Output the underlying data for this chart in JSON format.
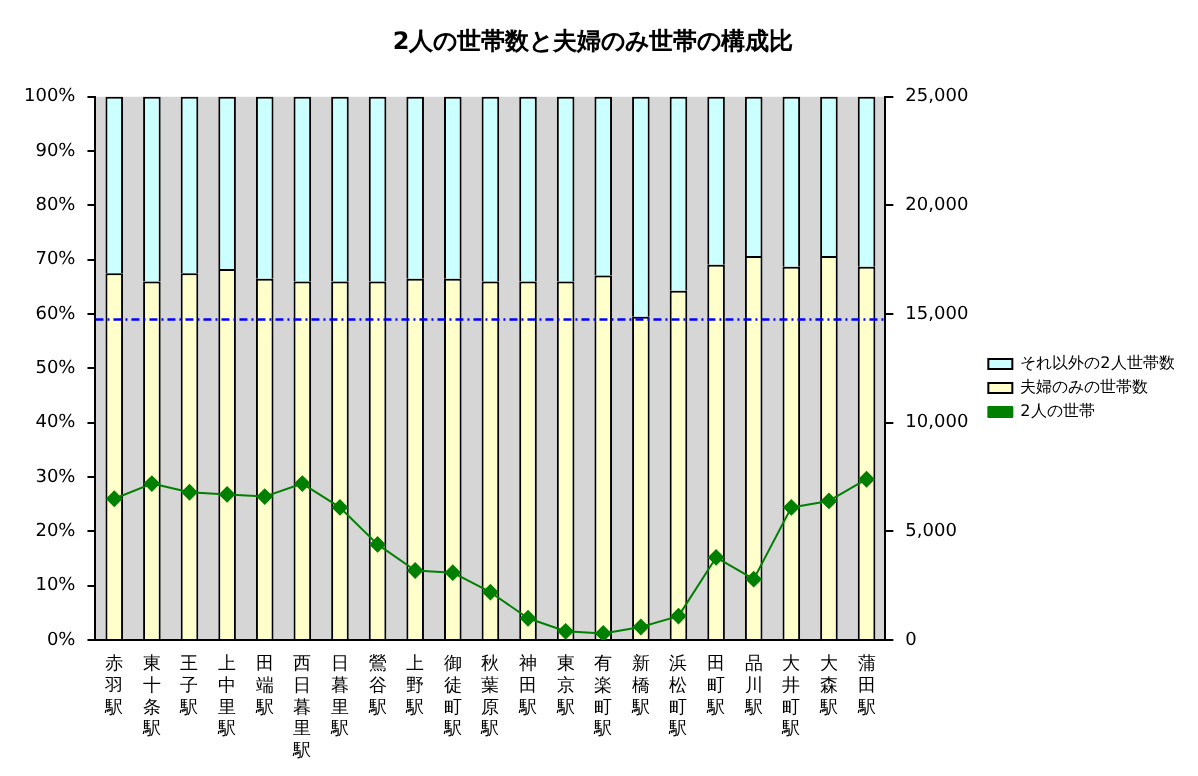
{
  "chart_data": {
    "type": "bar",
    "title": "2人の世帯数と夫婦のみ世帯の構成比",
    "stacked": true,
    "categories": [
      "赤羽駅",
      "東十条駅",
      "王子駅",
      "上中里駅",
      "田端駅",
      "西日暮里駅",
      "日暮里駅",
      "鶯谷駅",
      "上野駅",
      "御徒町駅",
      "秋葉原駅",
      "神田駅",
      "東京駅",
      "有楽町駅",
      "新橋駅",
      "浜松町駅",
      "田町駅",
      "品川駅",
      "大井町駅",
      "大森駅",
      "蒲田駅"
    ],
    "series": [
      {
        "name": "夫婦のみの世帯数",
        "color": "#ffffcc",
        "values": [
          67.5,
          66,
          67.5,
          68.3,
          66.5,
          66,
          66,
          66,
          66.5,
          66.5,
          66,
          66,
          66,
          67.1,
          59.5,
          64.3,
          69.1,
          70.7,
          68.7,
          70.7,
          68.7
        ]
      },
      {
        "name": "それ以外の2人世帯数",
        "color": "#ccffff",
        "values": [
          32.5,
          34,
          32.5,
          31.7,
          33.5,
          34,
          34,
          34,
          33.5,
          33.5,
          34,
          34,
          34,
          32.9,
          40.5,
          35.7,
          30.9,
          29.3,
          31.3,
          29.3,
          31.3
        ]
      },
      {
        "name": "2人の世帯",
        "type": "line",
        "axis": "y2",
        "color": "#008000",
        "marker": "diamond",
        "values": [
          6500,
          7200,
          6800,
          6700,
          6600,
          7200,
          6100,
          4400,
          3200,
          3100,
          2200,
          1000,
          400,
          300,
          600,
          1100,
          3800,
          2800,
          6100,
          6400,
          7400
        ]
      }
    ],
    "ylim": [
      0,
      100
    ],
    "yticks": [
      {
        "value": 0,
        "label": "0%"
      },
      {
        "value": 10,
        "label": "10%"
      },
      {
        "value": 20,
        "label": "20%"
      },
      {
        "value": 30,
        "label": "30%"
      },
      {
        "value": 40,
        "label": "40%"
      },
      {
        "value": 50,
        "label": "50%"
      },
      {
        "value": 60,
        "label": "60%"
      },
      {
        "value": 70,
        "label": "70%"
      },
      {
        "value": 80,
        "label": "80%"
      },
      {
        "value": 90,
        "label": "90%"
      },
      {
        "value": 100,
        "label": "100%"
      }
    ],
    "y2lim": [
      0,
      25000
    ],
    "y2ticks": [
      0,
      {
        "value": 5000,
        "label": "5,000"
      },
      {
        "value": 10000,
        "label": "10,000"
      },
      {
        "value": 15000,
        "label": "15,000"
      },
      {
        "value": 20000,
        "label": "20,000"
      },
      {
        "value": 25000,
        "label": "25,000"
      }
    ],
    "ref_lines": [
      {
        "axis": "y",
        "value": 59,
        "color": "#0000ff",
        "line_style": "dashed"
      }
    ],
    "legend": "right",
    "grid": false
  }
}
